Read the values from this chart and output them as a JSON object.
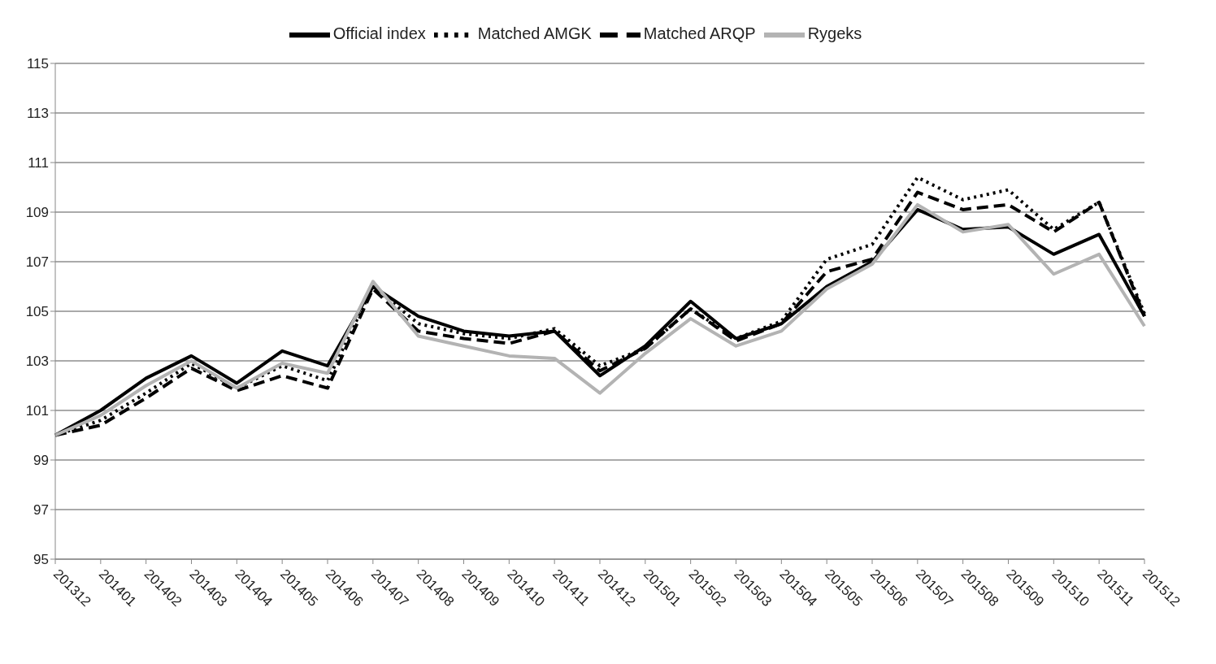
{
  "chart_data": {
    "type": "line",
    "categories": [
      "201312",
      "201401",
      "201402",
      "201403",
      "201404",
      "201405",
      "201406",
      "201407",
      "201408",
      "201409",
      "201410",
      "201411",
      "201412",
      "201501",
      "201502",
      "201503",
      "201504",
      "201505",
      "201506",
      "201507",
      "201508",
      "201509",
      "201510",
      "201511",
      "201512"
    ],
    "series": [
      {
        "name": "Official index",
        "color": "#000000",
        "line_style": "solid",
        "values": [
          100.0,
          101.0,
          102.3,
          103.2,
          102.1,
          103.4,
          102.8,
          106.0,
          104.8,
          104.2,
          104.0,
          104.2,
          102.4,
          103.6,
          105.4,
          103.9,
          104.5,
          106.0,
          107.0,
          109.1,
          108.3,
          108.4,
          107.3,
          108.1,
          104.8
        ]
      },
      {
        "name": "Matched AMGK",
        "color": "#000000",
        "line_style": "dotted",
        "values": [
          100.0,
          100.6,
          101.7,
          102.9,
          101.9,
          102.8,
          102.2,
          106.0,
          104.5,
          104.1,
          103.9,
          104.3,
          102.8,
          103.5,
          105.1,
          103.9,
          104.6,
          107.1,
          107.7,
          110.4,
          109.5,
          109.9,
          108.3,
          109.4,
          104.9
        ]
      },
      {
        "name": "Matched ARQP",
        "color": "#000000",
        "line_style": "dashed",
        "values": [
          100.0,
          100.4,
          101.5,
          102.7,
          101.8,
          102.4,
          101.9,
          105.9,
          104.2,
          103.9,
          103.7,
          104.2,
          102.6,
          103.5,
          105.1,
          103.8,
          104.5,
          106.6,
          107.1,
          109.8,
          109.1,
          109.3,
          108.2,
          109.4,
          104.8
        ]
      },
      {
        "name": "Rygeks",
        "color": "#b3b3b3",
        "line_style": "solid",
        "values": [
          100.0,
          100.8,
          102.0,
          103.0,
          101.9,
          102.9,
          102.5,
          106.2,
          104.0,
          103.6,
          103.2,
          103.1,
          101.7,
          103.3,
          104.7,
          103.6,
          104.2,
          105.9,
          106.9,
          109.3,
          108.2,
          108.5,
          106.5,
          107.3,
          104.4
        ]
      }
    ],
    "ylim": [
      95,
      115
    ],
    "yticks": [
      95,
      97,
      99,
      101,
      103,
      105,
      107,
      109,
      111,
      113,
      115
    ],
    "grid": "y",
    "legend": "top",
    "marker": "none"
  }
}
